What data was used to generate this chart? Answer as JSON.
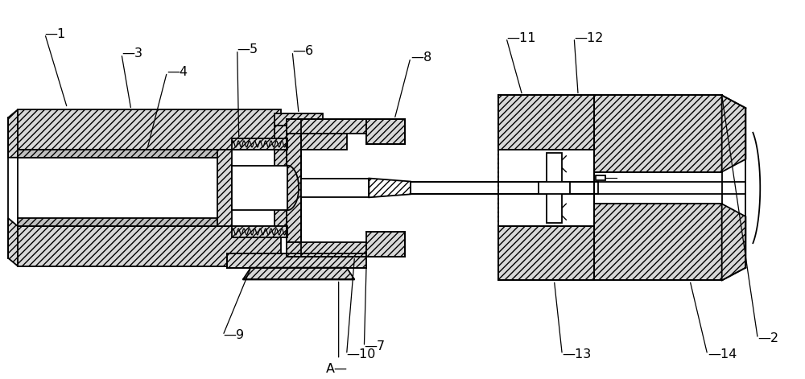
{
  "bg_color": "#ffffff",
  "hatch": "////",
  "hatch2": "\\\\",
  "fig_width": 10.0,
  "fig_height": 4.71,
  "lw": 1.3
}
